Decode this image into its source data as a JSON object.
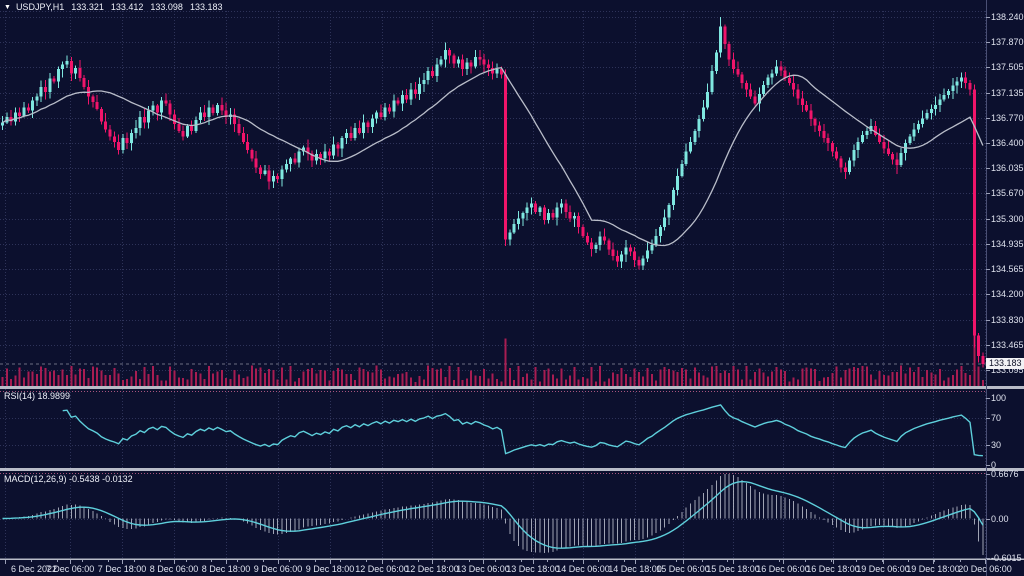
{
  "window": {
    "collapse_marker": "▼",
    "symbol": "USDJPY,H1",
    "ohlc": {
      "open": "133.321",
      "high": "133.412",
      "low": "133.098",
      "close": "133.183"
    }
  },
  "indicators": {
    "rsi": {
      "label": "RSI(14)",
      "value": "18.9899",
      "axis_labels": [
        "100",
        "70",
        "30",
        "0"
      ],
      "levels": [
        70,
        30
      ]
    },
    "macd": {
      "label": "MACD(12,26,9)",
      "value1": "-0.5438",
      "value2": "-0.0132",
      "axis_labels": [
        "0.6676",
        "0.00",
        "-0.6015"
      ]
    }
  },
  "colors": {
    "background": "#0c102e",
    "grid": "#2e3359",
    "bull": "#7fe7e0",
    "bear": "#f0156a",
    "ma_line": "#b9bdc9",
    "volume": "#a81d52",
    "indicator_line": "#5ecfdb",
    "macd_histogram": "#c6c9d6",
    "divider": "#b9bcc8",
    "sub_border_dots": "#b85c86",
    "axis_text": "#dfe2ee",
    "tick": "#9ba0b8",
    "price_tag_bg": "#f2f2f5",
    "price_tag_text": "#0b0e24"
  },
  "chart_data": {
    "type": "candlestick",
    "title": "USDJPY,H1",
    "symbol": "USDJPY",
    "timeframe": "H1",
    "current_price": "133.183",
    "price_axis": [
      "138.240",
      "137.870",
      "137.505",
      "137.135",
      "136.770",
      "136.400",
      "136.035",
      "135.670",
      "135.300",
      "134.935",
      "134.565",
      "134.200",
      "133.830",
      "133.465",
      "133.095"
    ],
    "price_axis_range": [
      133.095,
      138.24
    ],
    "time_axis": [
      "6 Dec 2022",
      "7 Dec 06:00",
      "7 Dec 18:00",
      "8 Dec 06:00",
      "8 Dec 18:00",
      "9 Dec 06:00",
      "9 Dec 18:00",
      "12 Dec 06:00",
      "12 Dec 18:00",
      "13 Dec 06:00",
      "13 Dec 18:00",
      "14 Dec 06:00",
      "14 Dec 18:00",
      "15 Dec 06:00",
      "15 Dec 18:00",
      "16 Dec 06:00",
      "16 Dec 18:00",
      "19 Dec 06:00",
      "19 Dec 18:00",
      "20 Dec 06:00"
    ],
    "rsi_range": [
      0,
      100
    ],
    "macd_range": [
      -0.6015,
      0.6676
    ],
    "first_open": 136.66,
    "closes": [
      136.7,
      136.78,
      136.72,
      136.85,
      136.8,
      136.92,
      136.88,
      137.02,
      137.08,
      137.22,
      137.15,
      137.34,
      137.3,
      137.48,
      137.55,
      137.6,
      137.42,
      137.5,
      137.35,
      137.22,
      137.08,
      137.0,
      136.9,
      136.72,
      136.6,
      136.5,
      136.42,
      136.3,
      136.48,
      136.4,
      136.55,
      136.62,
      136.78,
      136.7,
      136.88,
      136.95,
      136.85,
      137.02,
      136.98,
      136.82,
      136.68,
      136.58,
      136.5,
      136.65,
      136.58,
      136.74,
      136.85,
      136.78,
      136.92,
      136.84,
      136.96,
      136.88,
      136.78,
      136.82,
      136.68,
      136.55,
      136.42,
      136.3,
      136.18,
      136.05,
      135.95,
      136.0,
      135.84,
      135.92,
      135.88,
      136.02,
      136.1,
      136.18,
      136.12,
      136.28,
      136.34,
      136.25,
      136.15,
      136.24,
      136.18,
      136.28,
      136.22,
      136.38,
      136.32,
      136.48,
      136.55,
      136.48,
      136.62,
      136.55,
      136.7,
      136.64,
      136.76,
      136.85,
      136.78,
      136.92,
      136.86,
      137.02,
      136.98,
      137.1,
      137.04,
      137.18,
      137.12,
      137.26,
      137.32,
      137.45,
      137.38,
      137.55,
      137.62,
      137.76,
      137.68,
      137.56,
      137.62,
      137.48,
      137.58,
      137.52,
      137.66,
      137.62,
      137.55,
      137.5,
      137.42,
      137.48,
      137.4,
      135.0,
      135.1,
      135.22,
      135.3,
      135.38,
      135.46,
      135.52,
      135.4,
      135.46,
      135.28,
      135.38,
      135.32,
      135.46,
      135.52,
      135.4,
      135.3,
      135.34,
      135.18,
      135.05,
      134.95,
      134.86,
      134.92,
      135.04,
      134.98,
      134.85,
      134.76,
      134.68,
      134.78,
      134.88,
      134.82,
      134.7,
      134.62,
      134.72,
      134.84,
      134.92,
      135.05,
      135.18,
      135.32,
      135.5,
      135.72,
      135.92,
      136.1,
      136.28,
      136.42,
      136.58,
      136.75,
      136.92,
      137.15,
      137.45,
      137.72,
      138.1,
      137.85,
      137.62,
      137.48,
      137.4,
      137.28,
      137.18,
      137.08,
      136.98,
      137.12,
      137.25,
      137.36,
      137.42,
      137.52,
      137.46,
      137.35,
      137.28,
      137.18,
      137.05,
      136.96,
      136.88,
      136.75,
      136.66,
      136.58,
      136.48,
      136.4,
      136.28,
      136.18,
      136.05,
      135.98,
      136.15,
      136.3,
      136.42,
      136.52,
      136.58,
      136.65,
      136.52,
      136.42,
      136.32,
      136.24,
      136.16,
      136.08,
      136.26,
      136.4,
      136.5,
      136.6,
      136.68,
      136.76,
      136.84,
      136.9,
      136.96,
      137.04,
      137.1,
      137.16,
      137.24,
      137.3,
      137.36,
      137.28,
      137.18,
      133.6,
      133.3,
      133.18
    ],
    "wick_overrides": {
      "103": {
        "high": 137.87
      },
      "117": {
        "low": 134.9
      },
      "148": {
        "low": 134.56
      },
      "167": {
        "high": 138.24
      },
      "196": {
        "low": 135.88
      },
      "208": {
        "low": 135.95
      },
      "226": {
        "low": 133.42
      }
    },
    "moving_average_period": 21
  }
}
